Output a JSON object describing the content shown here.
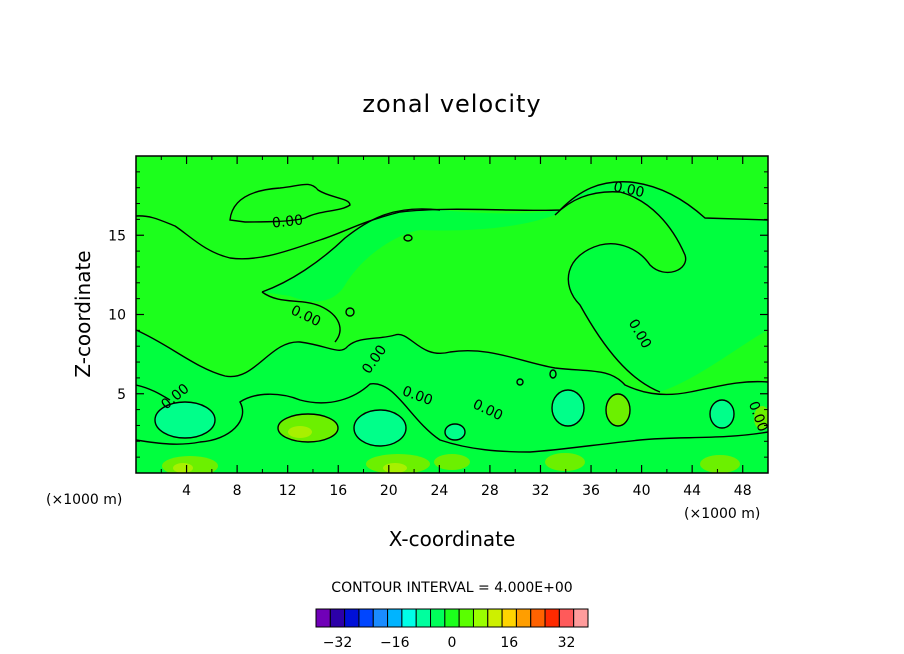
{
  "chart_data": {
    "type": "heatmap",
    "title": "zonal velocity",
    "xlabel": "X-coordinate",
    "ylabel": "Z-coordinate",
    "x_multiplier_label": "(×1000 m)",
    "z_multiplier_label": "(×1000 m)",
    "xlim": [
      0,
      50
    ],
    "zlim": [
      0,
      20
    ],
    "x_ticks": [
      "4",
      "8",
      "12",
      "16",
      "20",
      "24",
      "28",
      "32",
      "36",
      "40",
      "44",
      "48"
    ],
    "z_ticks": [
      "5",
      "10",
      "15"
    ],
    "contour_interval_label": "CONTOUR INTERVAL = 4.000E+00",
    "contour_label": "0.00",
    "colorbar": {
      "levels": [
        -36,
        -32,
        -28,
        -24,
        -20,
        -16,
        -12,
        -8,
        -4,
        0,
        4,
        8,
        12,
        16,
        20,
        24,
        28,
        32,
        36
      ],
      "tick_labels": [
        "−32",
        "−16",
        "0",
        "16",
        "32"
      ],
      "tick_values": [
        -32,
        -16,
        0,
        16,
        32
      ],
      "colors": [
        "#7000b8",
        "#2c00a8",
        "#0010d8",
        "#0046ff",
        "#1a8cff",
        "#00b4ff",
        "#00ffe8",
        "#00ff9e",
        "#00ff5a",
        "#1cff1c",
        "#5aff00",
        "#9aff00",
        "#cdf000",
        "#ffd400",
        "#ff9e00",
        "#ff6200",
        "#ff2a00",
        "#ff5a5a",
        "#ff9c9c"
      ]
    }
  }
}
